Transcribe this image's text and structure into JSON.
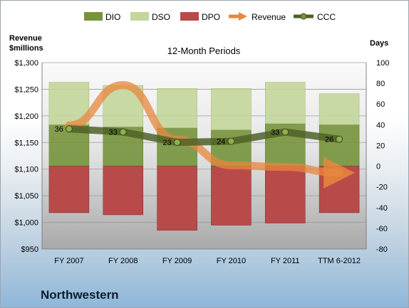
{
  "company": "Northwestern",
  "colors": {
    "dio": "#77933c",
    "dso": "#c3d69b",
    "dpo": "#b84a4a",
    "revenue": "#e8873c",
    "ccc": "#4f6228"
  },
  "chart_data": {
    "type": "bar",
    "title": "12-Month Periods",
    "left_axis_label": "Revenue $millions",
    "right_axis_label": "Days",
    "categories": [
      "FY 2007",
      "FY 2008",
      "FY 2009",
      "FY 2010",
      "FY 2011",
      "TTM 6-2012"
    ],
    "legend": [
      "DIO",
      "DSO",
      "DPO",
      "Revenue",
      "CCC"
    ],
    "legend_position": "top",
    "ylim_left": [
      950,
      1300
    ],
    "yticks_left": [
      "$950",
      "$1,000",
      "$1,050",
      "$1,100",
      "$1,150",
      "$1,200",
      "$1,250",
      "$1,300"
    ],
    "ylim_right": [
      -80,
      100
    ],
    "yticks_right": [
      "-80",
      "-60",
      "-40",
      "-20",
      "0",
      "20",
      "40",
      "60",
      "80",
      "100"
    ],
    "grid": true,
    "series": [
      {
        "name": "DIO",
        "axis": "right",
        "values": [
          40,
          38,
          37,
          35,
          41,
          40
        ]
      },
      {
        "name": "DSO",
        "axis": "right",
        "values": [
          41,
          40,
          38,
          40,
          40,
          30
        ]
      },
      {
        "name": "DPO",
        "axis": "right",
        "values": [
          -45,
          -47,
          -62,
          -57,
          -55,
          -45
        ]
      },
      {
        "name": "Revenue",
        "axis": "left",
        "values": [
          1182,
          1258,
          1155,
          1107,
          1104,
          1093
        ]
      },
      {
        "name": "CCC",
        "axis": "right",
        "values": [
          36,
          33,
          23,
          24,
          33,
          26
        ]
      }
    ],
    "data_labels": [
      "36",
      "33",
      "23",
      "24",
      "33",
      "26"
    ]
  }
}
